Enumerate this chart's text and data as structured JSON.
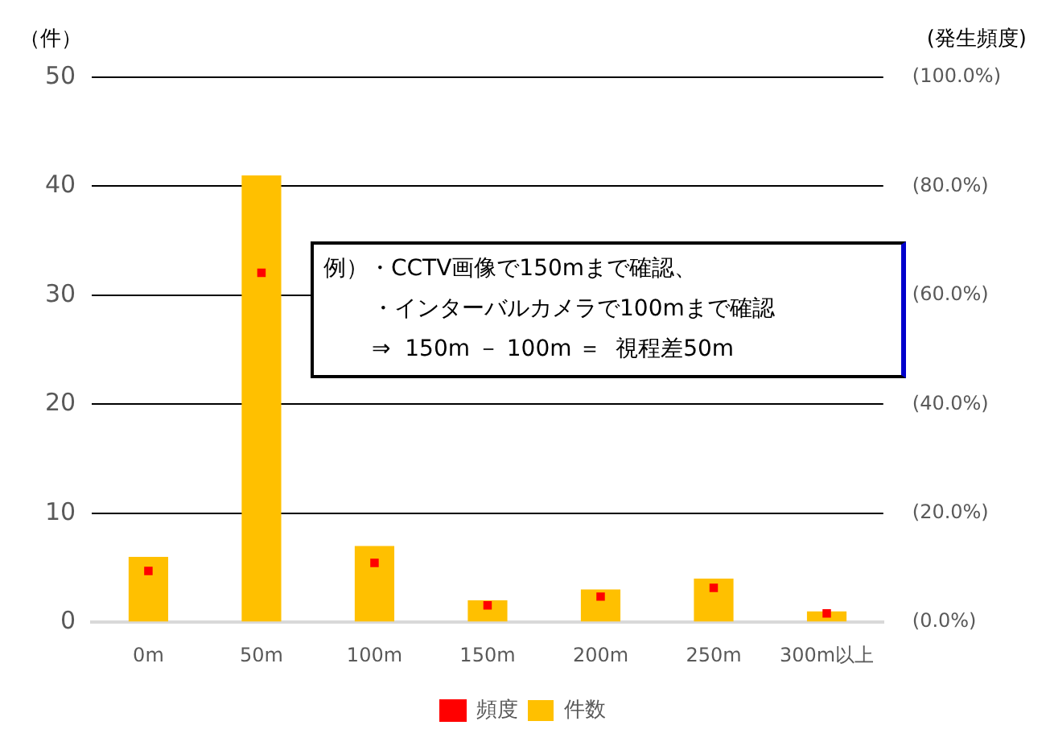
{
  "chart_data": {
    "type": "bar",
    "categories": [
      "0m",
      "50m",
      "100m",
      "150m",
      "200m",
      "250m",
      "300m以上"
    ],
    "series": [
      {
        "name": "件数",
        "color": "#ffc000",
        "values": [
          6,
          41,
          7,
          2,
          3,
          4,
          1
        ]
      },
      {
        "name": "頻度",
        "type": "scatter",
        "axis": "y2",
        "color": "#ff0000",
        "values": [
          9.4,
          64.1,
          10.9,
          3.1,
          4.7,
          6.3,
          1.6
        ]
      }
    ],
    "ylabel": "（件）",
    "y2label": "(発生頻度)",
    "ylim": [
      0,
      50
    ],
    "yticks": [
      0,
      10,
      20,
      30,
      40,
      50
    ],
    "y2lim": [
      0,
      100
    ],
    "y2ticks": [
      {
        "value": 0,
        "label": "(0.0%)"
      },
      {
        "value": 20,
        "label": "(20.0%)"
      },
      {
        "value": 40,
        "label": "(40.0%)"
      },
      {
        "value": 60,
        "label": "(60.0%)"
      },
      {
        "value": 80,
        "label": "(80.0%)"
      },
      {
        "value": 100,
        "label": "(100.0%)"
      }
    ],
    "grid": "y",
    "legend": "bottom",
    "marker": "square",
    "annotations": [
      "例）・CCTV画像で150mまで確認、",
      "・インターバルカメラで100mまで確認",
      "⇒  150m － 100m ＝  視程差50m"
    ]
  }
}
